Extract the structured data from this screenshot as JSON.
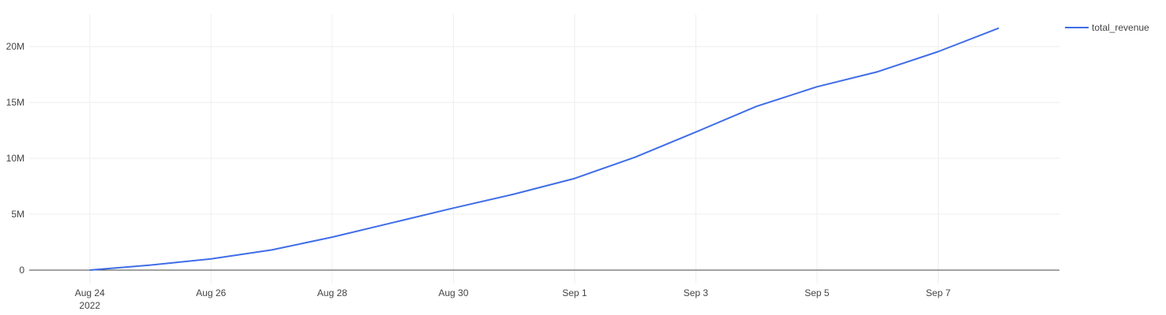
{
  "chart_data": {
    "type": "line",
    "title": "",
    "xlabel": "",
    "ylabel": "",
    "x_axis_type": "date",
    "x": [
      "2022-08-24",
      "2022-08-25",
      "2022-08-26",
      "2022-08-27",
      "2022-08-28",
      "2022-08-29",
      "2022-08-30",
      "2022-08-31",
      "2022-09-01",
      "2022-09-02",
      "2022-09-03",
      "2022-09-04",
      "2022-09-05",
      "2022-09-06",
      "2022-09-07",
      "2022-09-08"
    ],
    "x_ticks": [
      {
        "date": "2022-08-24",
        "label": "Aug 24",
        "sublabel": "2022"
      },
      {
        "date": "2022-08-26",
        "label": "Aug 26",
        "sublabel": ""
      },
      {
        "date": "2022-08-28",
        "label": "Aug 28",
        "sublabel": ""
      },
      {
        "date": "2022-08-30",
        "label": "Aug 30",
        "sublabel": ""
      },
      {
        "date": "2022-09-01",
        "label": "Sep 1",
        "sublabel": ""
      },
      {
        "date": "2022-09-03",
        "label": "Sep 3",
        "sublabel": ""
      },
      {
        "date": "2022-09-05",
        "label": "Sep 5",
        "sublabel": ""
      },
      {
        "date": "2022-09-07",
        "label": "Sep 7",
        "sublabel": ""
      }
    ],
    "xlim": [
      "2022-08-23",
      "2022-09-09"
    ],
    "ylim": [
      -1200000,
      22900000
    ],
    "y_ticks": [
      {
        "value": 0,
        "label": "0"
      },
      {
        "value": 5000000,
        "label": "5M"
      },
      {
        "value": 10000000,
        "label": "10M"
      },
      {
        "value": 15000000,
        "label": "15M"
      },
      {
        "value": 20000000,
        "label": "20M"
      }
    ],
    "series": [
      {
        "name": "total_revenue",
        "color": "#3f6de8",
        "values": [
          0,
          450000,
          1000000,
          1800000,
          2950000,
          4250000,
          5550000,
          6800000,
          8200000,
          10100000,
          12350000,
          14650000,
          16400000,
          17750000,
          19550000,
          21650000
        ]
      }
    ],
    "grid": true,
    "legend_position": "top-right"
  }
}
